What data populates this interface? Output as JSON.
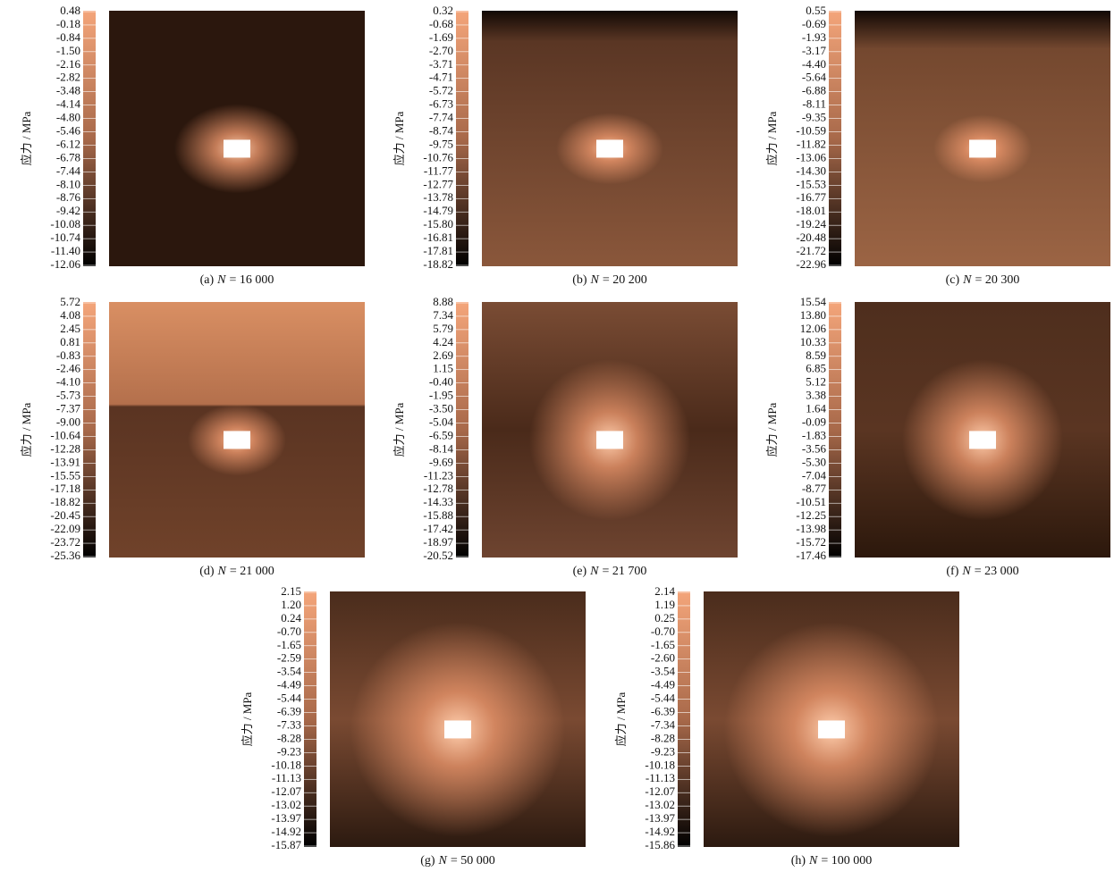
{
  "panels": [
    {
      "caption": {
        "label": "(a)",
        "var": "N",
        "value": "= 16 000"
      },
      "axis_label": "应力 / MPa",
      "ticks": [
        "0.48",
        "-0.18",
        "-0.84",
        "-1.50",
        "-2.16",
        "-2.82",
        "-3.48",
        "-4.14",
        "-4.80",
        "-5.46",
        "-6.12",
        "-6.78",
        "-7.44",
        "-8.10",
        "-8.76",
        "-9.42",
        "-10.08",
        "-10.74",
        "-11.40",
        "-12.06"
      ]
    },
    {
      "caption": {
        "label": "(b)",
        "var": "N",
        "value": "= 20 200"
      },
      "axis_label": "应力 / MPa",
      "ticks": [
        "0.32",
        "-0.68",
        "-1.69",
        "-2.70",
        "-3.71",
        "-4.71",
        "-5.72",
        "-6.73",
        "-7.74",
        "-8.74",
        "-9.75",
        "-10.76",
        "-11.77",
        "-12.77",
        "-13.78",
        "-14.79",
        "-15.80",
        "-16.81",
        "-17.81",
        "-18.82"
      ]
    },
    {
      "caption": {
        "label": "(c)",
        "var": "N",
        "value": "= 20 300"
      },
      "axis_label": "应力 / MPa",
      "ticks": [
        "0.55",
        "-0.69",
        "-1.93",
        "-3.17",
        "-4.40",
        "-5.64",
        "-6.88",
        "-8.11",
        "-9.35",
        "-10.59",
        "-11.82",
        "-13.06",
        "-14.30",
        "-15.53",
        "-16.77",
        "-18.01",
        "-19.24",
        "-20.48",
        "-21.72",
        "-22.96"
      ]
    },
    {
      "caption": {
        "label": "(d)",
        "var": "N",
        "value": "= 21 000"
      },
      "axis_label": "应力 / MPa",
      "ticks": [
        "5.72",
        "4.08",
        "2.45",
        "0.81",
        "-0.83",
        "-2.46",
        "-4.10",
        "-5.73",
        "-7.37",
        "-9.00",
        "-10.64",
        "-12.28",
        "-13.91",
        "-15.55",
        "-17.18",
        "-18.82",
        "-20.45",
        "-22.09",
        "-23.72",
        "-25.36"
      ]
    },
    {
      "caption": {
        "label": "(e)",
        "var": "N",
        "value": "= 21 700"
      },
      "axis_label": "应力 / MPa",
      "ticks": [
        "8.88",
        "7.34",
        "5.79",
        "4.24",
        "2.69",
        "1.15",
        "-0.40",
        "-1.95",
        "-3.50",
        "-5.04",
        "-6.59",
        "-8.14",
        "-9.69",
        "-11.23",
        "-12.78",
        "-14.33",
        "-15.88",
        "-17.42",
        "-18.97",
        "-20.52"
      ]
    },
    {
      "caption": {
        "label": "(f)",
        "var": "N",
        "value": "= 23 000"
      },
      "axis_label": "应力 / MPa",
      "ticks": [
        "15.54",
        "13.80",
        "12.06",
        "10.33",
        "8.59",
        "6.85",
        "5.12",
        "3.38",
        "1.64",
        "-0.09",
        "-1.83",
        "-3.56",
        "-5.30",
        "-7.04",
        "-8.77",
        "-10.51",
        "-12.25",
        "-13.98",
        "-15.72",
        "-17.46"
      ]
    },
    {
      "caption": {
        "label": "(g)",
        "var": "N",
        "value": "= 50 000"
      },
      "axis_label": "应力 / MPa",
      "ticks": [
        "2.15",
        "1.20",
        "0.24",
        "-0.70",
        "-1.65",
        "-2.59",
        "-3.54",
        "-4.49",
        "-5.44",
        "-6.39",
        "-7.33",
        "-8.28",
        "-9.23",
        "-10.18",
        "-11.13",
        "-12.07",
        "-13.02",
        "-13.97",
        "-14.92",
        "-15.87"
      ]
    },
    {
      "caption": {
        "label": "(h)",
        "var": "N",
        "value": "= 100 000"
      },
      "axis_label": "应力 / MPa",
      "ticks": [
        "2.14",
        "1.19",
        "0.25",
        "-0.70",
        "-1.65",
        "-2.60",
        "-3.54",
        "-4.49",
        "-5.44",
        "-6.39",
        "-7.34",
        "-8.28",
        "-9.23",
        "-10.18",
        "-11.13",
        "-12.07",
        "-13.02",
        "-13.97",
        "-14.92",
        "-15.86"
      ]
    }
  ]
}
